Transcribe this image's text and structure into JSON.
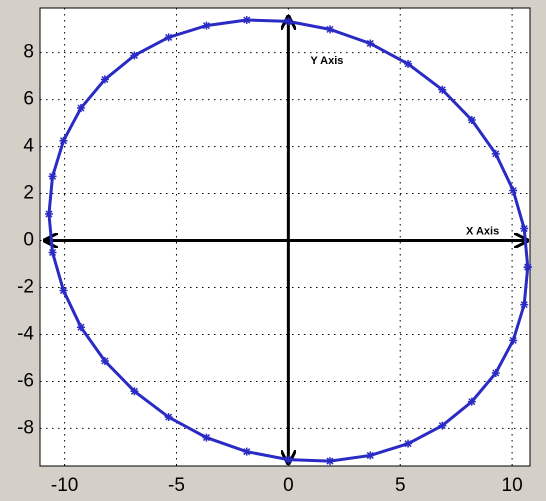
{
  "chart_data": {
    "type": "scatter",
    "x": [
      10.7,
      10.54,
      10.05,
      9.27,
      8.2,
      6.88,
      5.35,
      3.66,
      1.86,
      0,
      -1.86,
      -3.66,
      -5.35,
      -6.88,
      -8.2,
      -9.27,
      -10.05,
      -10.54,
      -10.7,
      -10.54,
      -10.05,
      -9.27,
      -8.2,
      -6.88,
      -5.35,
      -3.66,
      -1.86,
      0,
      1.86,
      3.66,
      5.35,
      6.88,
      8.2,
      9.27,
      10.05,
      10.54,
      10.7
    ],
    "y": [
      -1.13,
      0.51,
      2.13,
      3.69,
      5.13,
      6.42,
      7.52,
      8.39,
      8.99,
      9.33,
      9.39,
      9.15,
      8.65,
      7.88,
      6.86,
      5.64,
      4.25,
      2.73,
      1.13,
      -0.51,
      -2.13,
      -3.69,
      -5.13,
      -6.42,
      -7.52,
      -8.39,
      -8.99,
      -9.33,
      -9.39,
      -9.15,
      -8.65,
      -7.88,
      -6.86,
      -5.64,
      -4.25,
      -2.73,
      -1.13
    ],
    "color": "#2a2ac4",
    "xlim": [
      -11.1,
      10.8
    ],
    "ylim": [
      -9.6,
      9.9
    ],
    "xticks": [
      -10,
      -5,
      0,
      5,
      10
    ],
    "yticks": [
      -8,
      -6,
      -4,
      -2,
      0,
      2,
      4,
      6,
      8
    ],
    "grid": true,
    "annotations": [
      "Y Axis",
      "X Axis"
    ]
  }
}
